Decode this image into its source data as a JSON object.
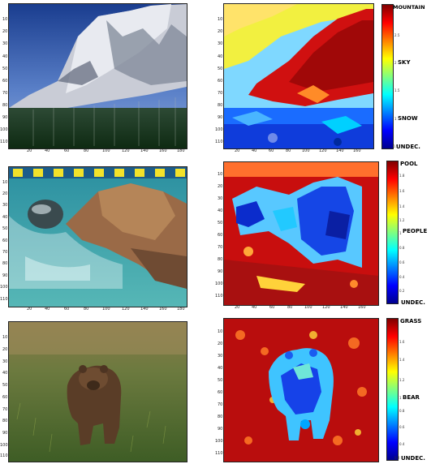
{
  "colors": {
    "jet": [
      "#00008f",
      "#0000ff",
      "#0080ff",
      "#00ffff",
      "#80ff80",
      "#ffff00",
      "#ff8000",
      "#ff0000",
      "#800000"
    ]
  },
  "rows": [
    {
      "photo": "mountain-photo",
      "x_ticks": [
        "20",
        "40",
        "60",
        "80",
        "100",
        "120",
        "140",
        "160",
        "180"
      ],
      "y_ticks": [
        "10",
        "20",
        "30",
        "40",
        "50",
        "60",
        "70",
        "80",
        "90",
        "100",
        "110"
      ],
      "heat_x_ticks": [
        "20",
        "40",
        "60",
        "80",
        "100",
        "120",
        "140",
        "160"
      ],
      "heat_y_ticks": [
        "10",
        "20",
        "30",
        "40",
        "50",
        "60",
        "70",
        "80",
        "90",
        "100",
        "110"
      ],
      "colorbar": {
        "labels": [
          "MOUNTAIN",
          "SKY",
          "SNOW",
          "UNDEC."
        ],
        "ticks": [
          "2.5",
          "2",
          "1.5",
          "1",
          "0.5"
        ]
      }
    },
    {
      "photo": "swimmer-photo",
      "x_ticks": [
        "20",
        "40",
        "60",
        "80",
        "100",
        "120",
        "140",
        "160",
        "180"
      ],
      "y_ticks": [
        "10",
        "20",
        "30",
        "40",
        "50",
        "60",
        "70",
        "80",
        "90",
        "100",
        "110"
      ],
      "heat_x_ticks": [
        "20",
        "40",
        "60",
        "80",
        "100",
        "120",
        "140",
        "160"
      ],
      "heat_y_ticks": [
        "10",
        "20",
        "30",
        "40",
        "50",
        "60",
        "70",
        "80",
        "90",
        "100",
        "110"
      ],
      "colorbar": {
        "labels": [
          "POOL",
          "PEOPLE",
          "UNDEC."
        ],
        "ticks": [
          "1.8",
          "1.6",
          "1.4",
          "1.2",
          "1",
          "0.8",
          "0.6",
          "0.4",
          "0.2"
        ]
      }
    },
    {
      "photo": "bear-photo",
      "x_ticks": [],
      "y_ticks": [
        "10",
        "20",
        "30",
        "40",
        "50",
        "60",
        "70",
        "80",
        "90",
        "100",
        "110"
      ],
      "heat_x_ticks": [],
      "heat_y_ticks": [
        "10",
        "20",
        "30",
        "40",
        "50",
        "60",
        "70",
        "80",
        "90",
        "100",
        "110"
      ],
      "colorbar": {
        "labels": [
          "GRASS",
          "BEAR",
          "UNDEC."
        ],
        "ticks": [
          "1.6",
          "1.4",
          "1.2",
          "1",
          "0.8",
          "0.6",
          "0.4",
          "0.2"
        ]
      }
    }
  ]
}
